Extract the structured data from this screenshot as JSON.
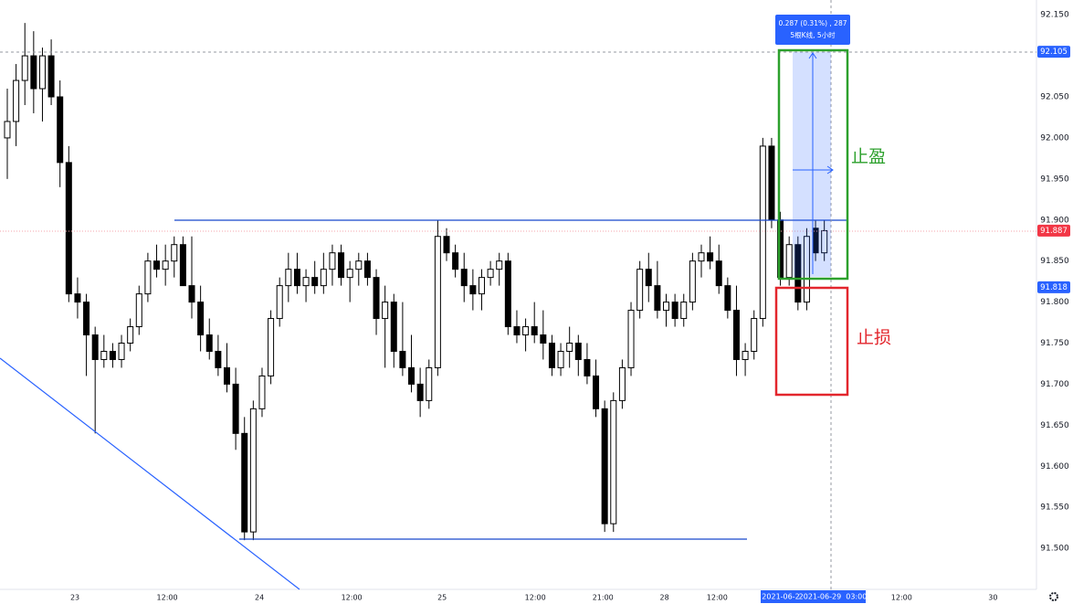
{
  "chart_data": {
    "type": "candlestick",
    "open": [
      92.0,
      92.02,
      92.07,
      92.1,
      92.06,
      92.1,
      92.05,
      91.97,
      91.81,
      91.8,
      91.76,
      91.73,
      91.74,
      91.73,
      91.75,
      91.77,
      91.81,
      91.85,
      91.84,
      91.85,
      91.87,
      91.82,
      91.8,
      91.76,
      91.74,
      91.72,
      91.7,
      91.64,
      91.52,
      91.67,
      91.71,
      91.78,
      91.82,
      91.84,
      91.82,
      91.83,
      91.82,
      91.84,
      91.86,
      91.83,
      91.84,
      91.85,
      91.83,
      91.78,
      91.8,
      91.74,
      91.72,
      91.7,
      91.68,
      91.72,
      91.88,
      91.86,
      91.84,
      91.82,
      91.81,
      91.83,
      91.84,
      91.85,
      91.77,
      91.76,
      91.77,
      91.76,
      91.75,
      91.72,
      91.74,
      91.75,
      91.73,
      91.71,
      91.67,
      91.53,
      91.68,
      91.72,
      91.79,
      91.84,
      91.82,
      91.79,
      91.8,
      91.78,
      91.8,
      91.85,
      91.86,
      91.85,
      91.82,
      91.79,
      91.73,
      91.74,
      91.78,
      91.99,
      91.9,
      91.83,
      91.87,
      91.8,
      91.89,
      91.86
    ],
    "high": [
      92.06,
      92.09,
      92.14,
      92.13,
      92.11,
      92.12,
      92.07,
      91.99,
      91.83,
      91.81,
      91.77,
      91.76,
      91.75,
      91.76,
      91.78,
      91.82,
      91.86,
      91.87,
      91.87,
      91.88,
      91.88,
      91.88,
      91.82,
      91.78,
      91.76,
      91.75,
      91.72,
      91.66,
      91.68,
      91.72,
      91.79,
      91.83,
      91.86,
      91.86,
      91.84,
      91.85,
      91.86,
      91.87,
      91.87,
      91.85,
      91.86,
      91.86,
      91.84,
      91.82,
      91.81,
      91.8,
      91.76,
      91.72,
      91.73,
      91.9,
      91.89,
      91.87,
      91.86,
      91.84,
      91.84,
      91.85,
      91.86,
      91.86,
      91.79,
      91.78,
      91.8,
      91.79,
      91.76,
      91.75,
      91.77,
      91.76,
      91.75,
      91.73,
      91.68,
      91.69,
      91.73,
      91.8,
      91.85,
      91.86,
      91.85,
      91.81,
      91.81,
      91.81,
      91.86,
      91.87,
      91.88,
      91.87,
      91.83,
      91.82,
      91.75,
      91.79,
      92.0,
      92.0,
      91.91,
      91.88,
      91.88,
      91.89,
      91.9,
      91.9
    ],
    "low": [
      91.95,
      91.99,
      92.04,
      92.03,
      92.02,
      92.04,
      91.94,
      91.8,
      91.78,
      91.71,
      91.64,
      91.72,
      91.72,
      91.72,
      91.74,
      91.76,
      91.8,
      91.83,
      91.82,
      91.83,
      91.82,
      91.78,
      91.74,
      91.73,
      91.71,
      91.69,
      91.62,
      91.51,
      91.51,
      91.66,
      91.7,
      91.77,
      91.8,
      91.81,
      91.8,
      91.81,
      91.81,
      91.82,
      91.82,
      91.8,
      91.82,
      91.82,
      91.76,
      91.72,
      91.72,
      91.71,
      91.69,
      91.66,
      91.67,
      91.71,
      91.85,
      91.83,
      91.8,
      91.79,
      91.79,
      91.82,
      91.82,
      91.76,
      91.75,
      91.74,
      91.75,
      91.73,
      91.71,
      91.71,
      91.72,
      91.71,
      91.7,
      91.66,
      91.52,
      91.52,
      91.67,
      91.71,
      91.78,
      91.8,
      91.78,
      91.77,
      91.77,
      91.77,
      91.79,
      91.83,
      91.84,
      91.81,
      91.78,
      91.71,
      91.71,
      91.73,
      91.77,
      91.89,
      91.82,
      91.82,
      91.79,
      91.79,
      91.85,
      91.85
    ],
    "close": [
      92.02,
      92.07,
      92.1,
      92.06,
      92.1,
      92.05,
      91.97,
      91.81,
      91.8,
      91.76,
      91.73,
      91.74,
      91.73,
      91.75,
      91.77,
      91.81,
      91.85,
      91.84,
      91.85,
      91.87,
      91.82,
      91.8,
      91.76,
      91.74,
      91.72,
      91.7,
      91.64,
      91.52,
      91.67,
      91.71,
      91.78,
      91.82,
      91.84,
      91.82,
      91.83,
      91.82,
      91.84,
      91.86,
      91.83,
      91.84,
      91.85,
      91.83,
      91.78,
      91.8,
      91.74,
      91.72,
      91.7,
      91.68,
      91.72,
      91.88,
      91.86,
      91.84,
      91.82,
      91.81,
      91.83,
      91.84,
      91.85,
      91.77,
      91.76,
      91.77,
      91.76,
      91.75,
      91.72,
      91.74,
      91.75,
      91.73,
      91.71,
      91.67,
      91.53,
      91.68,
      91.72,
      91.79,
      91.84,
      91.82,
      91.79,
      91.8,
      91.78,
      91.8,
      91.85,
      91.86,
      91.85,
      91.82,
      91.79,
      91.73,
      91.74,
      91.78,
      91.99,
      91.9,
      91.83,
      91.87,
      91.8,
      91.88,
      91.86,
      91.887
    ],
    "up_color": "#ffffff",
    "down_color": "#000000",
    "ylim": [
      91.45,
      92.168
    ],
    "yticks": [
      {
        "value": 91.5,
        "label": "91.500"
      },
      {
        "value": 91.55,
        "label": "91.550"
      },
      {
        "value": 91.6,
        "label": "91.600"
      },
      {
        "value": 91.65,
        "label": "91.650"
      },
      {
        "value": 91.7,
        "label": "91.700"
      },
      {
        "value": 91.75,
        "label": "91.750"
      },
      {
        "value": 91.8,
        "label": "91.800"
      },
      {
        "value": 91.85,
        "label": "91.850"
      },
      {
        "value": 91.9,
        "label": "91.900"
      },
      {
        "value": 91.95,
        "label": "91.950"
      },
      {
        "value": 92.0,
        "label": "92.000"
      },
      {
        "value": 92.05,
        "label": "92.050"
      },
      {
        "value": 92.15,
        "label": "92.150"
      }
    ],
    "xlim": [
      -0.83,
      117.15
    ],
    "xticks": [
      {
        "value": 7.7,
        "label": "23"
      },
      {
        "value": 18.2,
        "label": "12:00"
      },
      {
        "value": 28.7,
        "label": "24"
      },
      {
        "value": 39.2,
        "label": "12:00"
      },
      {
        "value": 49.5,
        "label": "25"
      },
      {
        "value": 60.1,
        "label": "12:00"
      },
      {
        "value": 67.8,
        "label": "21:00"
      },
      {
        "value": 74.8,
        "label": "28"
      },
      {
        "value": 80.8,
        "label": "12:00"
      },
      {
        "value": 101.8,
        "label": "12:00"
      },
      {
        "value": 112.2,
        "label": "30"
      }
    ],
    "price_labels": [
      {
        "value": 92.105,
        "color": "#2962ff"
      },
      {
        "value": 91.887,
        "color": "#f23645"
      },
      {
        "value": 91.818,
        "color": "#2962ff"
      }
    ],
    "crosshair_x_labels": [
      "2021-06-2",
      "2021-06-29  03:00"
    ],
    "annotations": {
      "measure": [
        "0.287 (0.31%) , 287",
        "5根K线, 5小时"
      ],
      "take_profit": "止盈",
      "stop_loss": "止损"
    }
  }
}
